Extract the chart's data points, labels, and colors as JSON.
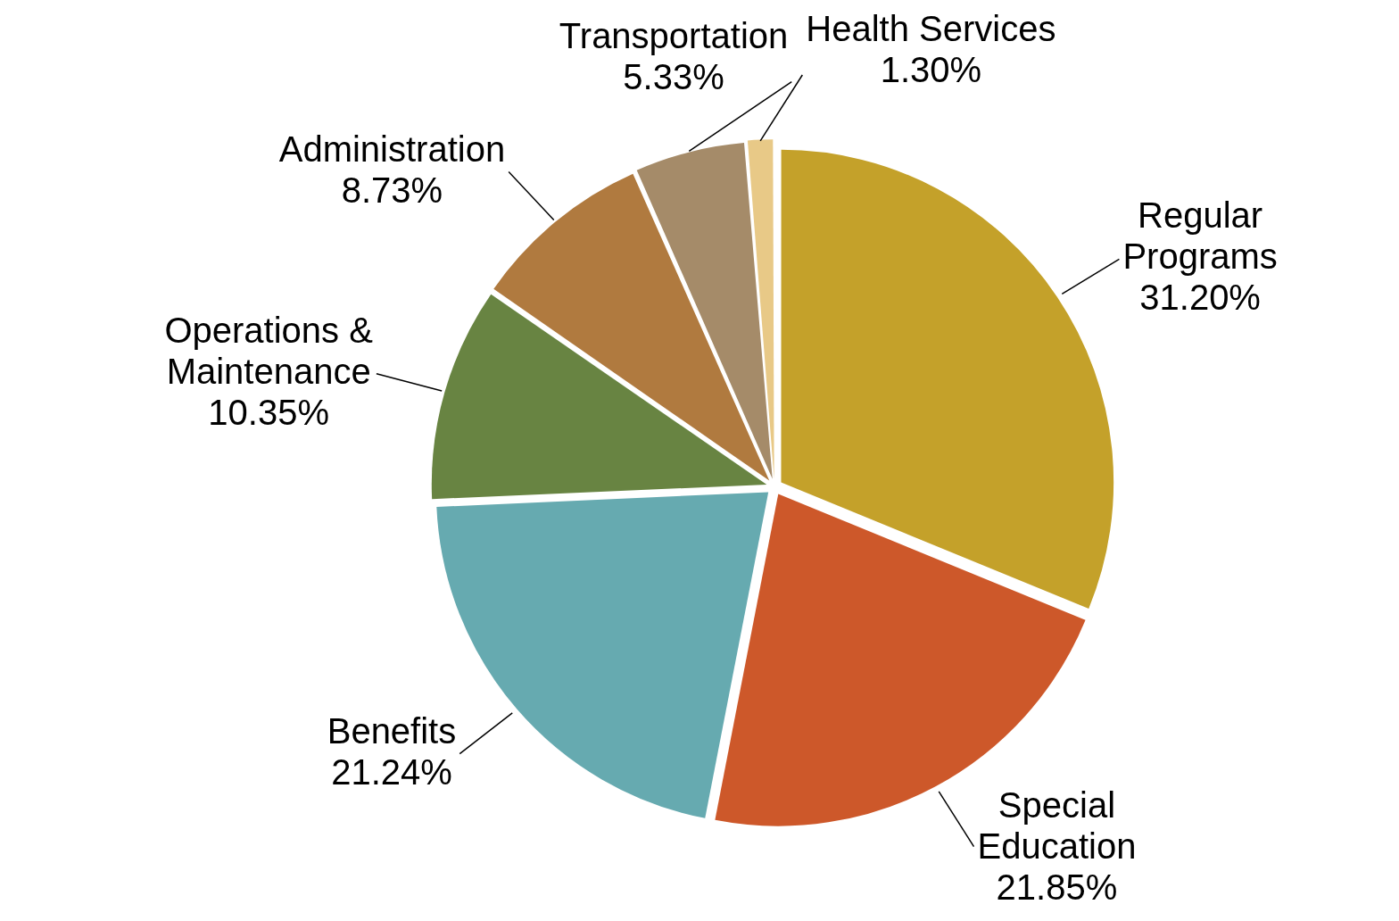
{
  "chart_data": {
    "type": "pie",
    "categories": [
      "Regular Programs",
      "Special Education",
      "Benefits",
      "Operations & Maintenance",
      "Administration",
      "Transportation",
      "Health Services"
    ],
    "values": [
      31.2,
      21.85,
      21.24,
      10.35,
      8.73,
      5.33,
      1.3
    ],
    "value_labels": [
      "31.20%",
      "21.85%",
      "21.24%",
      "10.35%",
      "8.73%",
      "5.33%",
      "1.30%"
    ],
    "colors": [
      "#c4a12a",
      "#cd582a",
      "#66aab0",
      "#688442",
      "#b07a3f",
      "#a58b69",
      "#e8c987"
    ],
    "legend": false
  }
}
